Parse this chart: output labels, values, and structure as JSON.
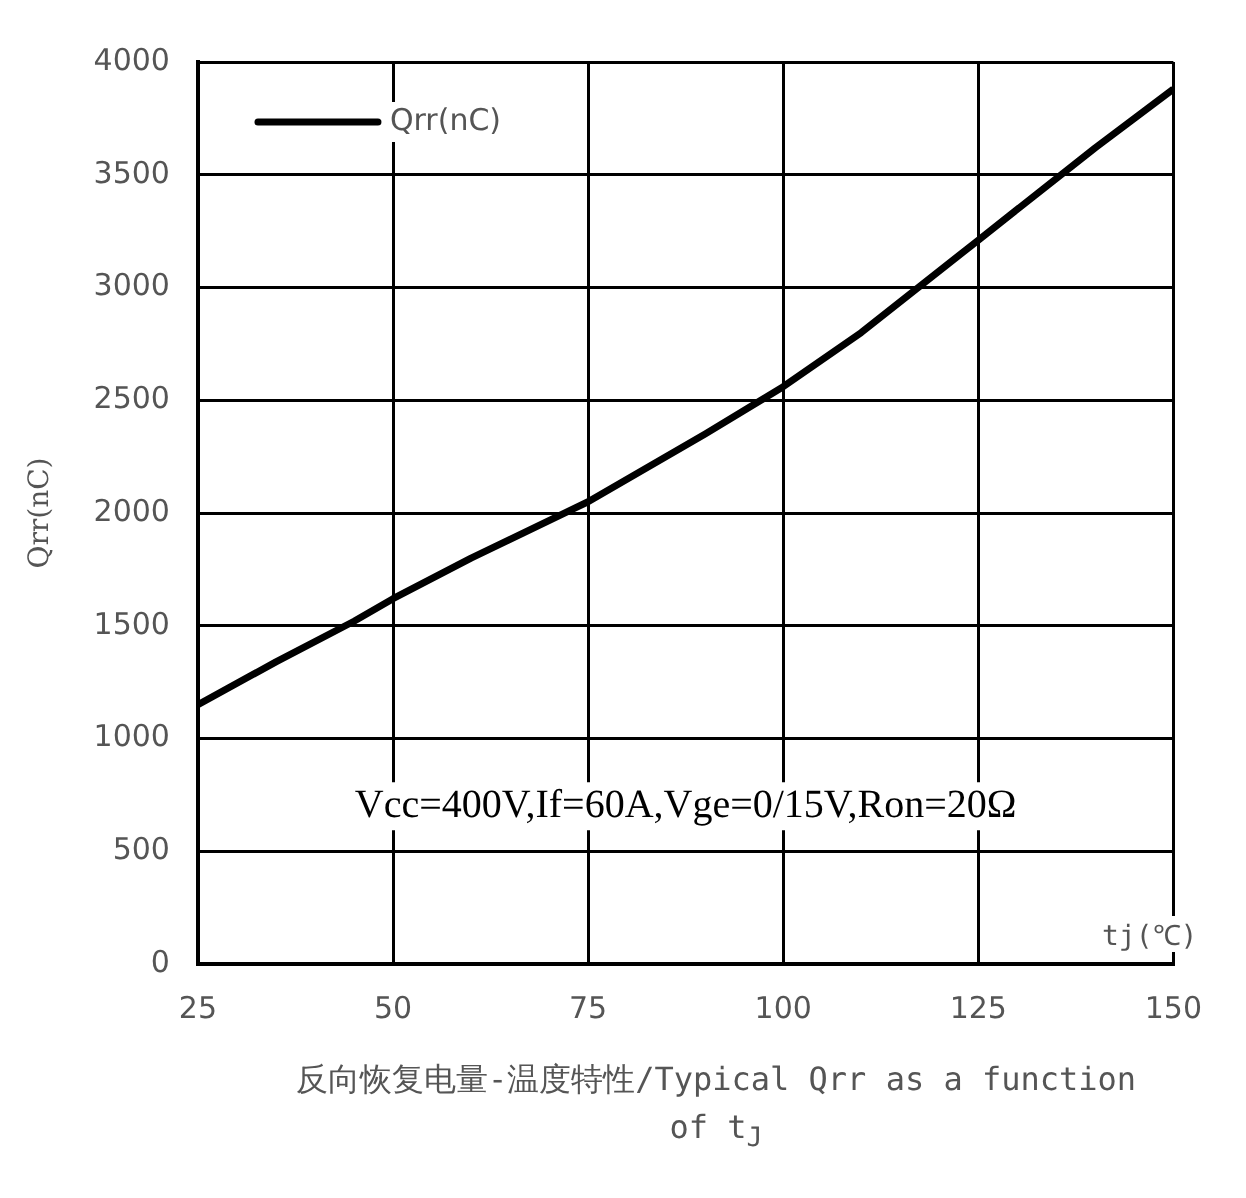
{
  "chart_data": {
    "type": "line",
    "title": "反向恢复电量-温度特性/Typical Qrr as a function of t$_{J}$",
    "xlabel": "tj(℃)",
    "ylabel": "Qrr(nC)",
    "annotations": [
      "Vcc=400V,If=60A,Vge=0/15V,Ron=20Ω"
    ],
    "x": [
      25,
      35,
      45,
      50,
      60,
      75,
      90,
      100,
      110,
      125,
      140,
      150
    ],
    "series": [
      {
        "name": "Qrr(nC)",
        "color": "#000000",
        "values": [
          1150,
          1340,
          1520,
          1620,
          1800,
          2050,
          2350,
          2560,
          2800,
          3210,
          3620,
          3880
        ]
      }
    ],
    "xlim": [
      25,
      150
    ],
    "xticks": [
      25,
      50,
      75,
      100,
      125,
      150
    ],
    "ylim": [
      0,
      4000
    ],
    "yticks": [
      0,
      500,
      1000,
      1500,
      2000,
      2500,
      3000,
      3500,
      4000
    ],
    "grid": true,
    "legend": "top left",
    "marker": "none",
    "line_style": "solid"
  }
}
